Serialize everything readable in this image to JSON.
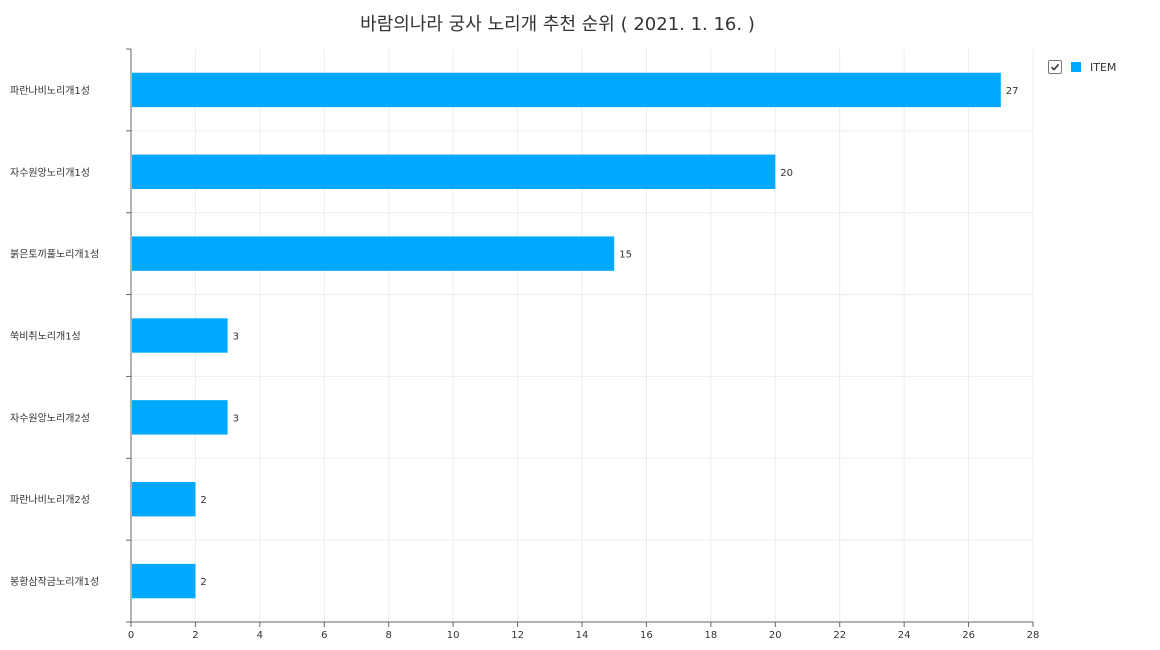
{
  "title": "바람의나라 궁사 노리개 추천 순위 ( 2021. 1. 16. )",
  "legend": {
    "label": "ITEM",
    "checked": true,
    "color": "#00A8FF"
  },
  "chart_data": {
    "type": "bar",
    "orientation": "horizontal",
    "title": "바람의나라 궁사 노리개 추천 순위 ( 2021. 1. 16. )",
    "categories": [
      "파란나비노리개1성",
      "자수원앙노리개1성",
      "붉은토끼풀노리개1성",
      "쑥비취노리개1성",
      "자수원앙노리개2성",
      "파란나비노리개2성",
      "봉황삼작금노리개1성"
    ],
    "series": [
      {
        "name": "ITEM",
        "values": [
          27,
          20,
          15,
          3,
          3,
          2,
          2
        ],
        "color": "#00A8FF"
      }
    ],
    "xlim": [
      0,
      28
    ],
    "xticks": [
      0,
      2,
      4,
      6,
      8,
      10,
      12,
      14,
      16,
      18,
      20,
      22,
      24,
      26,
      28
    ],
    "grid": true,
    "legend_position": "top-right",
    "data_labels": true
  }
}
